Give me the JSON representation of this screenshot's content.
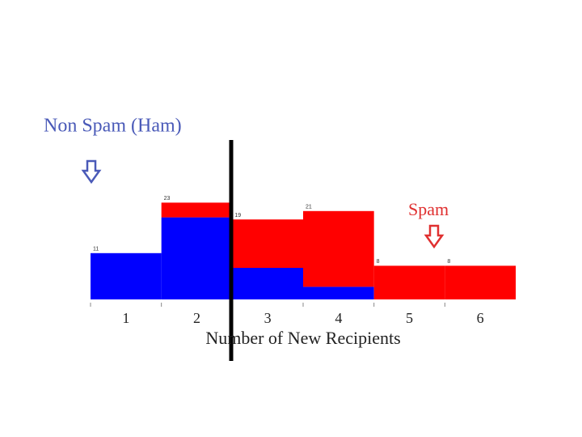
{
  "chart_data": {
    "type": "stacked_bar",
    "title": "Non Spam (Ham)",
    "spam_label": "Spam",
    "x_label": "Number of New Recipients",
    "categories": [
      "1",
      "2",
      "3",
      "4",
      "5",
      "6"
    ],
    "series": [
      {
        "name": "Non Spam (Ham)",
        "color": "#0000ff",
        "values": [
          11,
          19.5,
          7.5,
          3,
          0,
          0
        ]
      },
      {
        "name": "Spam",
        "color": "#ff0000",
        "values": [
          0,
          3.5,
          11.5,
          18,
          8,
          8
        ]
      }
    ],
    "totals": [
      11,
      23,
      19,
      21,
      8,
      8
    ],
    "ylim": [
      0,
      35
    ]
  }
}
